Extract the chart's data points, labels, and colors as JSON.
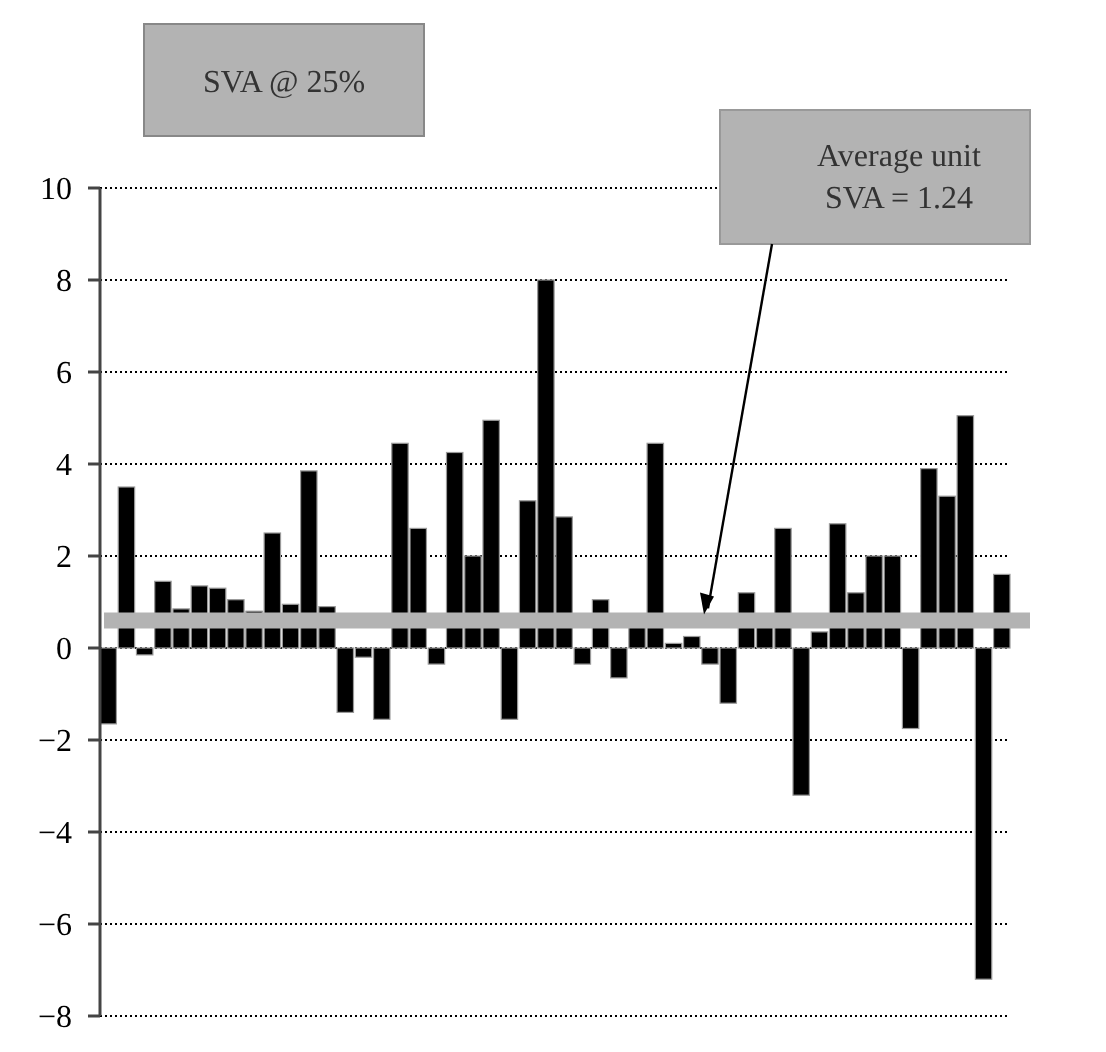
{
  "chart_data": {
    "type": "bar",
    "title": "SVA @ 25%",
    "categories": [
      null,
      null,
      null,
      null,
      null,
      null,
      null,
      null,
      null,
      null,
      null,
      null,
      null,
      null,
      null,
      null,
      null,
      null,
      null,
      null,
      null,
      null,
      null,
      null,
      null,
      null,
      null,
      null,
      null,
      null,
      null,
      null,
      null,
      null,
      null,
      null,
      null,
      null,
      null,
      null,
      null,
      null,
      null,
      null,
      null,
      null,
      null,
      null,
      null,
      null
    ],
    "values": [
      -1.65,
      3.5,
      -0.15,
      1.45,
      0.85,
      1.35,
      1.3,
      1.05,
      0.8,
      2.5,
      0.95,
      3.85,
      0.9,
      -1.4,
      -0.2,
      -1.55,
      4.45,
      2.6,
      -0.35,
      4.25,
      2.0,
      4.95,
      -1.55,
      3.2,
      8.0,
      2.85,
      -0.35,
      1.05,
      -0.65,
      0.5,
      4.45,
      0.1,
      0.25,
      -0.35,
      -1.2,
      1.2,
      0.5,
      2.6,
      -3.2,
      0.35,
      2.7,
      1.2,
      2.0,
      2.0,
      -1.75,
      3.9,
      3.3,
      5.05,
      -7.2,
      1.6
    ],
    "color": "#000000",
    "ylim": [
      -8,
      10
    ],
    "yticks": [
      {
        "value": -8,
        "label": "−8"
      },
      {
        "value": -6,
        "label": "−6"
      },
      {
        "value": -4,
        "label": "−4"
      },
      {
        "value": -2,
        "label": "−2"
      },
      0,
      2,
      4,
      6,
      8,
      10
    ],
    "grid": "y",
    "annotations": [
      "Average unit\nSVA = 1.24"
    ],
    "ref_lines": [
      {
        "axis": "y",
        "value": 0.6,
        "color": "#b3b3b3"
      }
    ]
  }
}
